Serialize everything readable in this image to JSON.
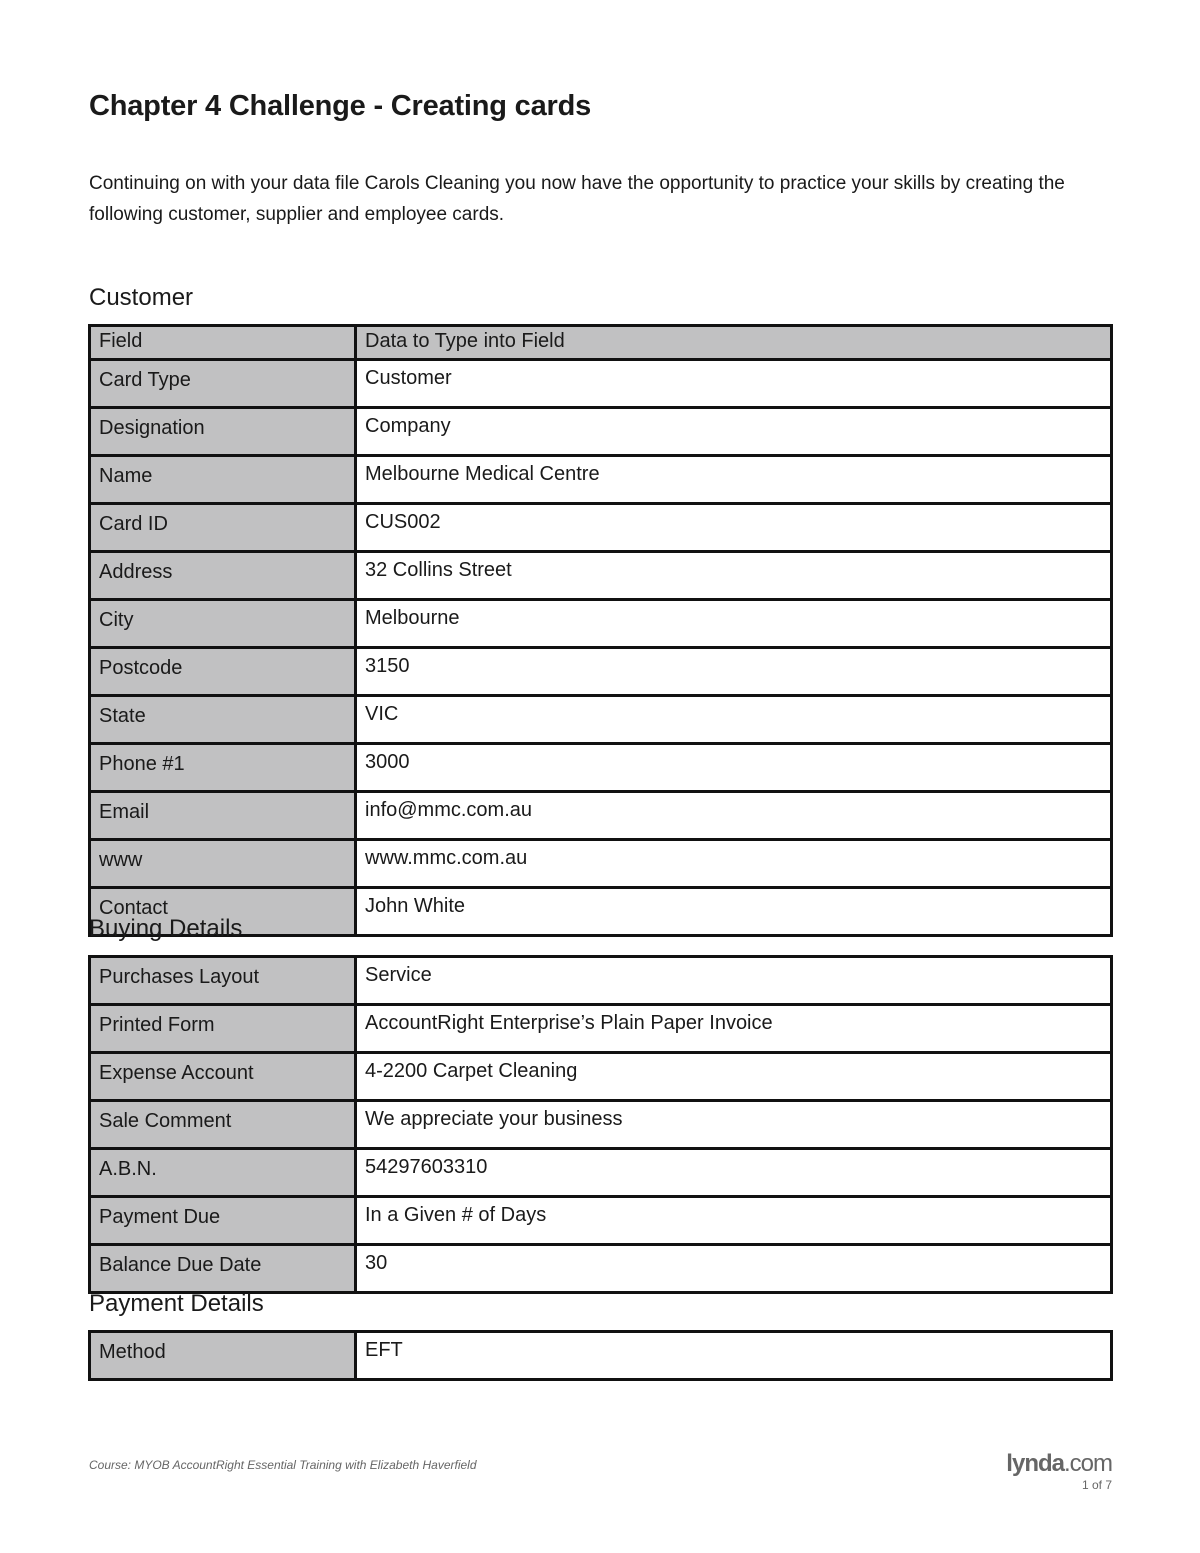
{
  "title": "Chapter 4 Challenge - Creating cards",
  "intro": "Continuing on with your data file Carols Cleaning you now have the opportunity to practice your skills by creating the following customer, supplier and employee cards.",
  "customer": {
    "heading": "Customer",
    "header": [
      "Field",
      "Data to Type into Field"
    ],
    "rows": [
      [
        "Card Type",
        "Customer"
      ],
      [
        "Designation",
        "Company"
      ],
      [
        "Name",
        "Melbourne Medical Centre"
      ],
      [
        "Card ID",
        "CUS002"
      ],
      [
        "Address",
        "32 Collins Street"
      ],
      [
        "City",
        "Melbourne"
      ],
      [
        "Postcode",
        "3150"
      ],
      [
        "State",
        "VIC"
      ],
      [
        "Phone #1",
        "3000"
      ],
      [
        "Email",
        "info@mmc.com.au"
      ],
      [
        "www",
        "www.mmc.com.au"
      ],
      [
        "Contact",
        "John White"
      ]
    ]
  },
  "buying": {
    "heading": "Buying Details",
    "rows": [
      [
        "Purchases Layout",
        "Service"
      ],
      [
        "Printed Form",
        "AccountRight Enterprise’s Plain Paper Invoice"
      ],
      [
        "Expense Account",
        "4-2200 Carpet Cleaning"
      ],
      [
        "Sale Comment",
        "We appreciate your business"
      ],
      [
        "A.B.N.",
        "54297603310"
      ],
      [
        "Payment Due",
        "In a Given # of Days"
      ],
      [
        "Balance Due Date",
        "30"
      ]
    ]
  },
  "payment": {
    "heading": "Payment Details",
    "rows": [
      [
        "Method",
        "EFT"
      ]
    ]
  },
  "footer": {
    "course": "Course: MYOB AccountRight Essential Training with Elizabeth Haverfield",
    "logo_main": "lynda",
    "logo_suffix": ".com",
    "page": "1 of 7"
  }
}
